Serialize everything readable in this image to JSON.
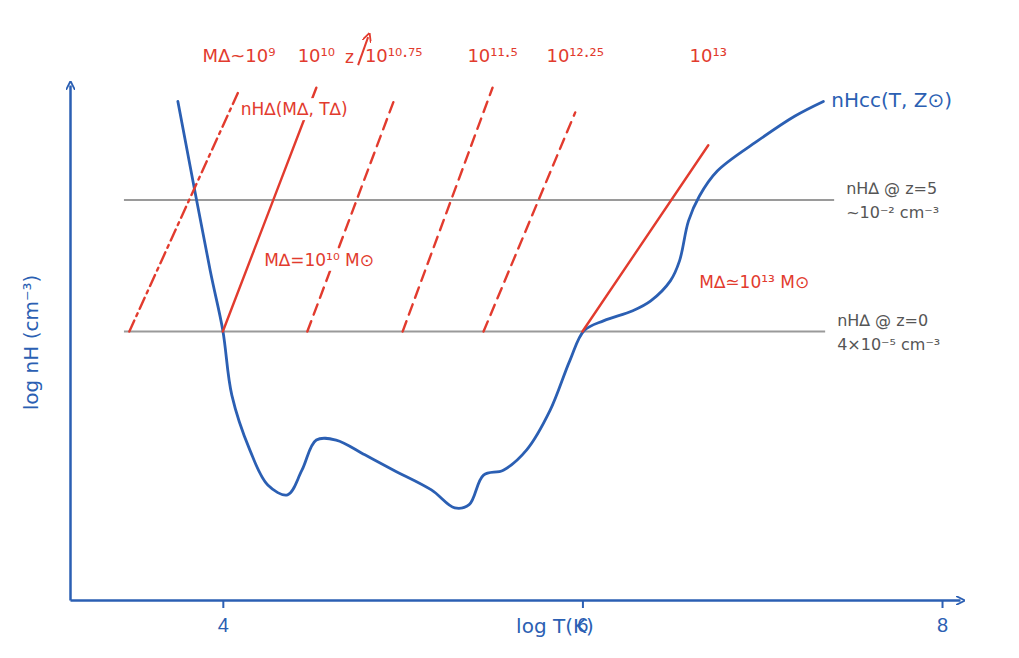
{
  "chart_data": {
    "type": "line",
    "x_label": "log T(K)",
    "y_label": "log nH (cm⁻³)",
    "xlim": [
      3.15,
      8.1
    ],
    "ylim": [
      -9.3,
      0.1
    ],
    "xticks": [
      4,
      6,
      8
    ],
    "yticks": [],
    "tick_labels": "x",
    "series": [
      {
        "name": "nHcc(T, Z⊙)",
        "color": "#2b5fb3",
        "line_style": "solid",
        "x": [
          3.75,
          3.93,
          4.0,
          4.05,
          4.15,
          4.25,
          4.36,
          4.44,
          4.52,
          4.63,
          4.79,
          4.95,
          5.16,
          5.29,
          5.37,
          5.45,
          5.56,
          5.69,
          5.82,
          5.93,
          6.01,
          6.12,
          6.28,
          6.38,
          6.49,
          6.54,
          6.59,
          6.65,
          6.75,
          6.97,
          7.18,
          7.34
        ],
        "values": [
          -0.2,
          -3.29,
          -4.38,
          -5.56,
          -6.56,
          -7.2,
          -7.38,
          -6.93,
          -6.38,
          -6.38,
          -6.65,
          -6.93,
          -7.29,
          -7.62,
          -7.56,
          -7.02,
          -6.93,
          -6.56,
          -5.84,
          -4.93,
          -4.38,
          -4.2,
          -4.02,
          -3.84,
          -3.47,
          -3.11,
          -2.38,
          -1.93,
          -1.47,
          -0.93,
          -0.47,
          -0.2
        ]
      },
      {
        "name": "M∆~10⁹",
        "color": "#e23b2e",
        "line_style": "dashdot",
        "x": [
          3.48,
          4.09
        ],
        "values": [
          -4.4,
          0.0
        ]
      },
      {
        "name": "10¹⁰",
        "color": "#e23b2e",
        "line_style": "solid",
        "x": [
          4.0,
          4.52
        ],
        "values": [
          -4.4,
          0.05
        ]
      },
      {
        "name": "10¹⁰·⁷⁵",
        "color": "#e23b2e",
        "line_style": "dashed",
        "x": [
          4.47,
          4.95
        ],
        "values": [
          -4.4,
          -0.2
        ]
      },
      {
        "name": "10¹¹·⁵",
        "color": "#e23b2e",
        "line_style": "dashed",
        "x": [
          5.0,
          5.5
        ],
        "values": [
          -4.4,
          0.05
        ]
      },
      {
        "name": "10¹²·²⁵",
        "color": "#e23b2e",
        "line_style": "dashed",
        "x": [
          5.45,
          5.96
        ],
        "values": [
          -4.4,
          -0.4
        ]
      },
      {
        "name": "10¹³",
        "color": "#e23b2e",
        "line_style": "solid",
        "x": [
          6.0,
          6.7
        ],
        "values": [
          -4.4,
          -1.0
        ]
      }
    ],
    "reference_lines": [
      {
        "value": -2,
        "x": [
          3.45,
          7.4
        ],
        "color": "#9a9a9a",
        "labels": [
          "nH∆ @ z=5",
          "~10⁻² cm⁻³"
        ]
      },
      {
        "value": -4.4,
        "x": [
          3.45,
          7.35
        ],
        "color": "#9a9a9a",
        "labels": [
          "nH∆ @ z=0",
          "4×10⁻⁵ cm⁻³"
        ]
      }
    ],
    "annotations": [
      {
        "text": "nH∆(M∆, T∆)",
        "x": 4.1,
        "y": -0.45,
        "color": "#e23b2e"
      },
      {
        "text": "M∆=10¹⁰ M⊙",
        "x": 4.23,
        "y": -3.2,
        "color": "#e23b2e"
      },
      {
        "text": "M∆≃10¹³ M⊙",
        "x": 6.65,
        "y": -3.6,
        "color": "#e23b2e"
      },
      {
        "text": "z",
        "x": 4.68,
        "y": 0.5,
        "color": "#e23b2e",
        "marker": "arrow"
      }
    ]
  }
}
